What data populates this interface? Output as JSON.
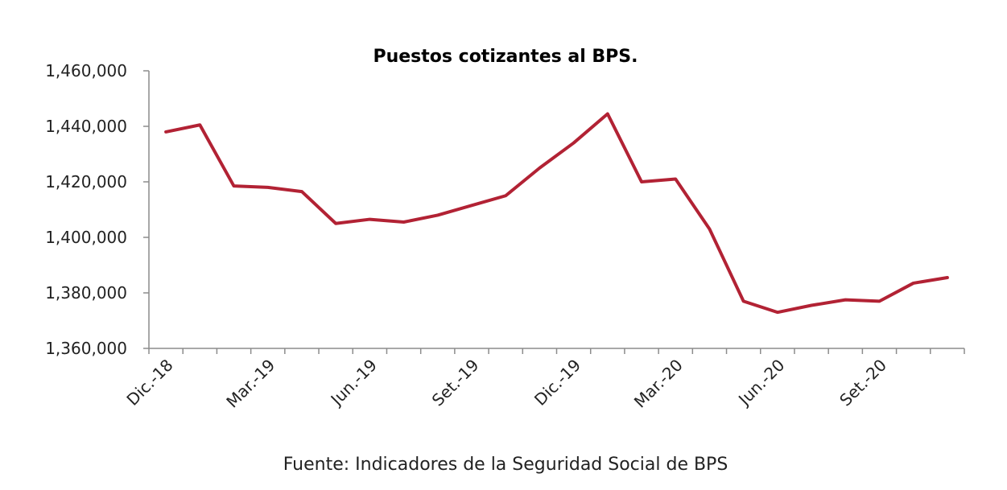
{
  "chart_data": {
    "type": "line",
    "title": "Puestos cotizantes al BPS.",
    "source": "Fuente: Indicadores de la Seguridad Social de BPS",
    "xlabel": "",
    "ylabel": "",
    "ylim": [
      1360000,
      1460000
    ],
    "yticks": [
      1360000,
      1380000,
      1400000,
      1420000,
      1440000,
      1460000
    ],
    "ytick_labels": [
      "1,360,000",
      "1,380,000",
      "1,400,000",
      "1,420,000",
      "1,440,000",
      "1,460,000"
    ],
    "grid": false,
    "legend": "none",
    "x": [
      "Dic.-18",
      "Ene.-19",
      "Feb.-19",
      "Mar.-19",
      "Abr.-19",
      "May.-19",
      "Jun.-19",
      "Jul.-19",
      "Ago.-19",
      "Set.-19",
      "Oct.-19",
      "Nov.-19",
      "Dic.-19",
      "Ene.-20",
      "Feb.-20",
      "Mar.-20",
      "Abr.-20",
      "May.-20",
      "Jun.-20",
      "Jul.-20",
      "Ago.-20",
      "Set.-20",
      "Oct.-20",
      "Nov.-20"
    ],
    "xtick_labels": [
      "Dic.-18",
      "",
      "",
      "Mar.-19",
      "",
      "",
      "Jun.-19",
      "",
      "",
      "Set.-19",
      "",
      "",
      "Dic.-19",
      "",
      "",
      "Mar.-20",
      "",
      "",
      "Jun.-20",
      "",
      "",
      "Set.-20",
      "",
      ""
    ],
    "series": [
      {
        "name": "",
        "color": "#b22234",
        "values": [
          1438000,
          1440500,
          1418500,
          1418000,
          1416500,
          1405000,
          1406500,
          1405500,
          1408000,
          1411500,
          1415000,
          1425000,
          1434000,
          1444500,
          1420000,
          1421000,
          1403000,
          1377000,
          1373000,
          1375500,
          1377500,
          1377000,
          1383500,
          1385500
        ]
      }
    ]
  }
}
